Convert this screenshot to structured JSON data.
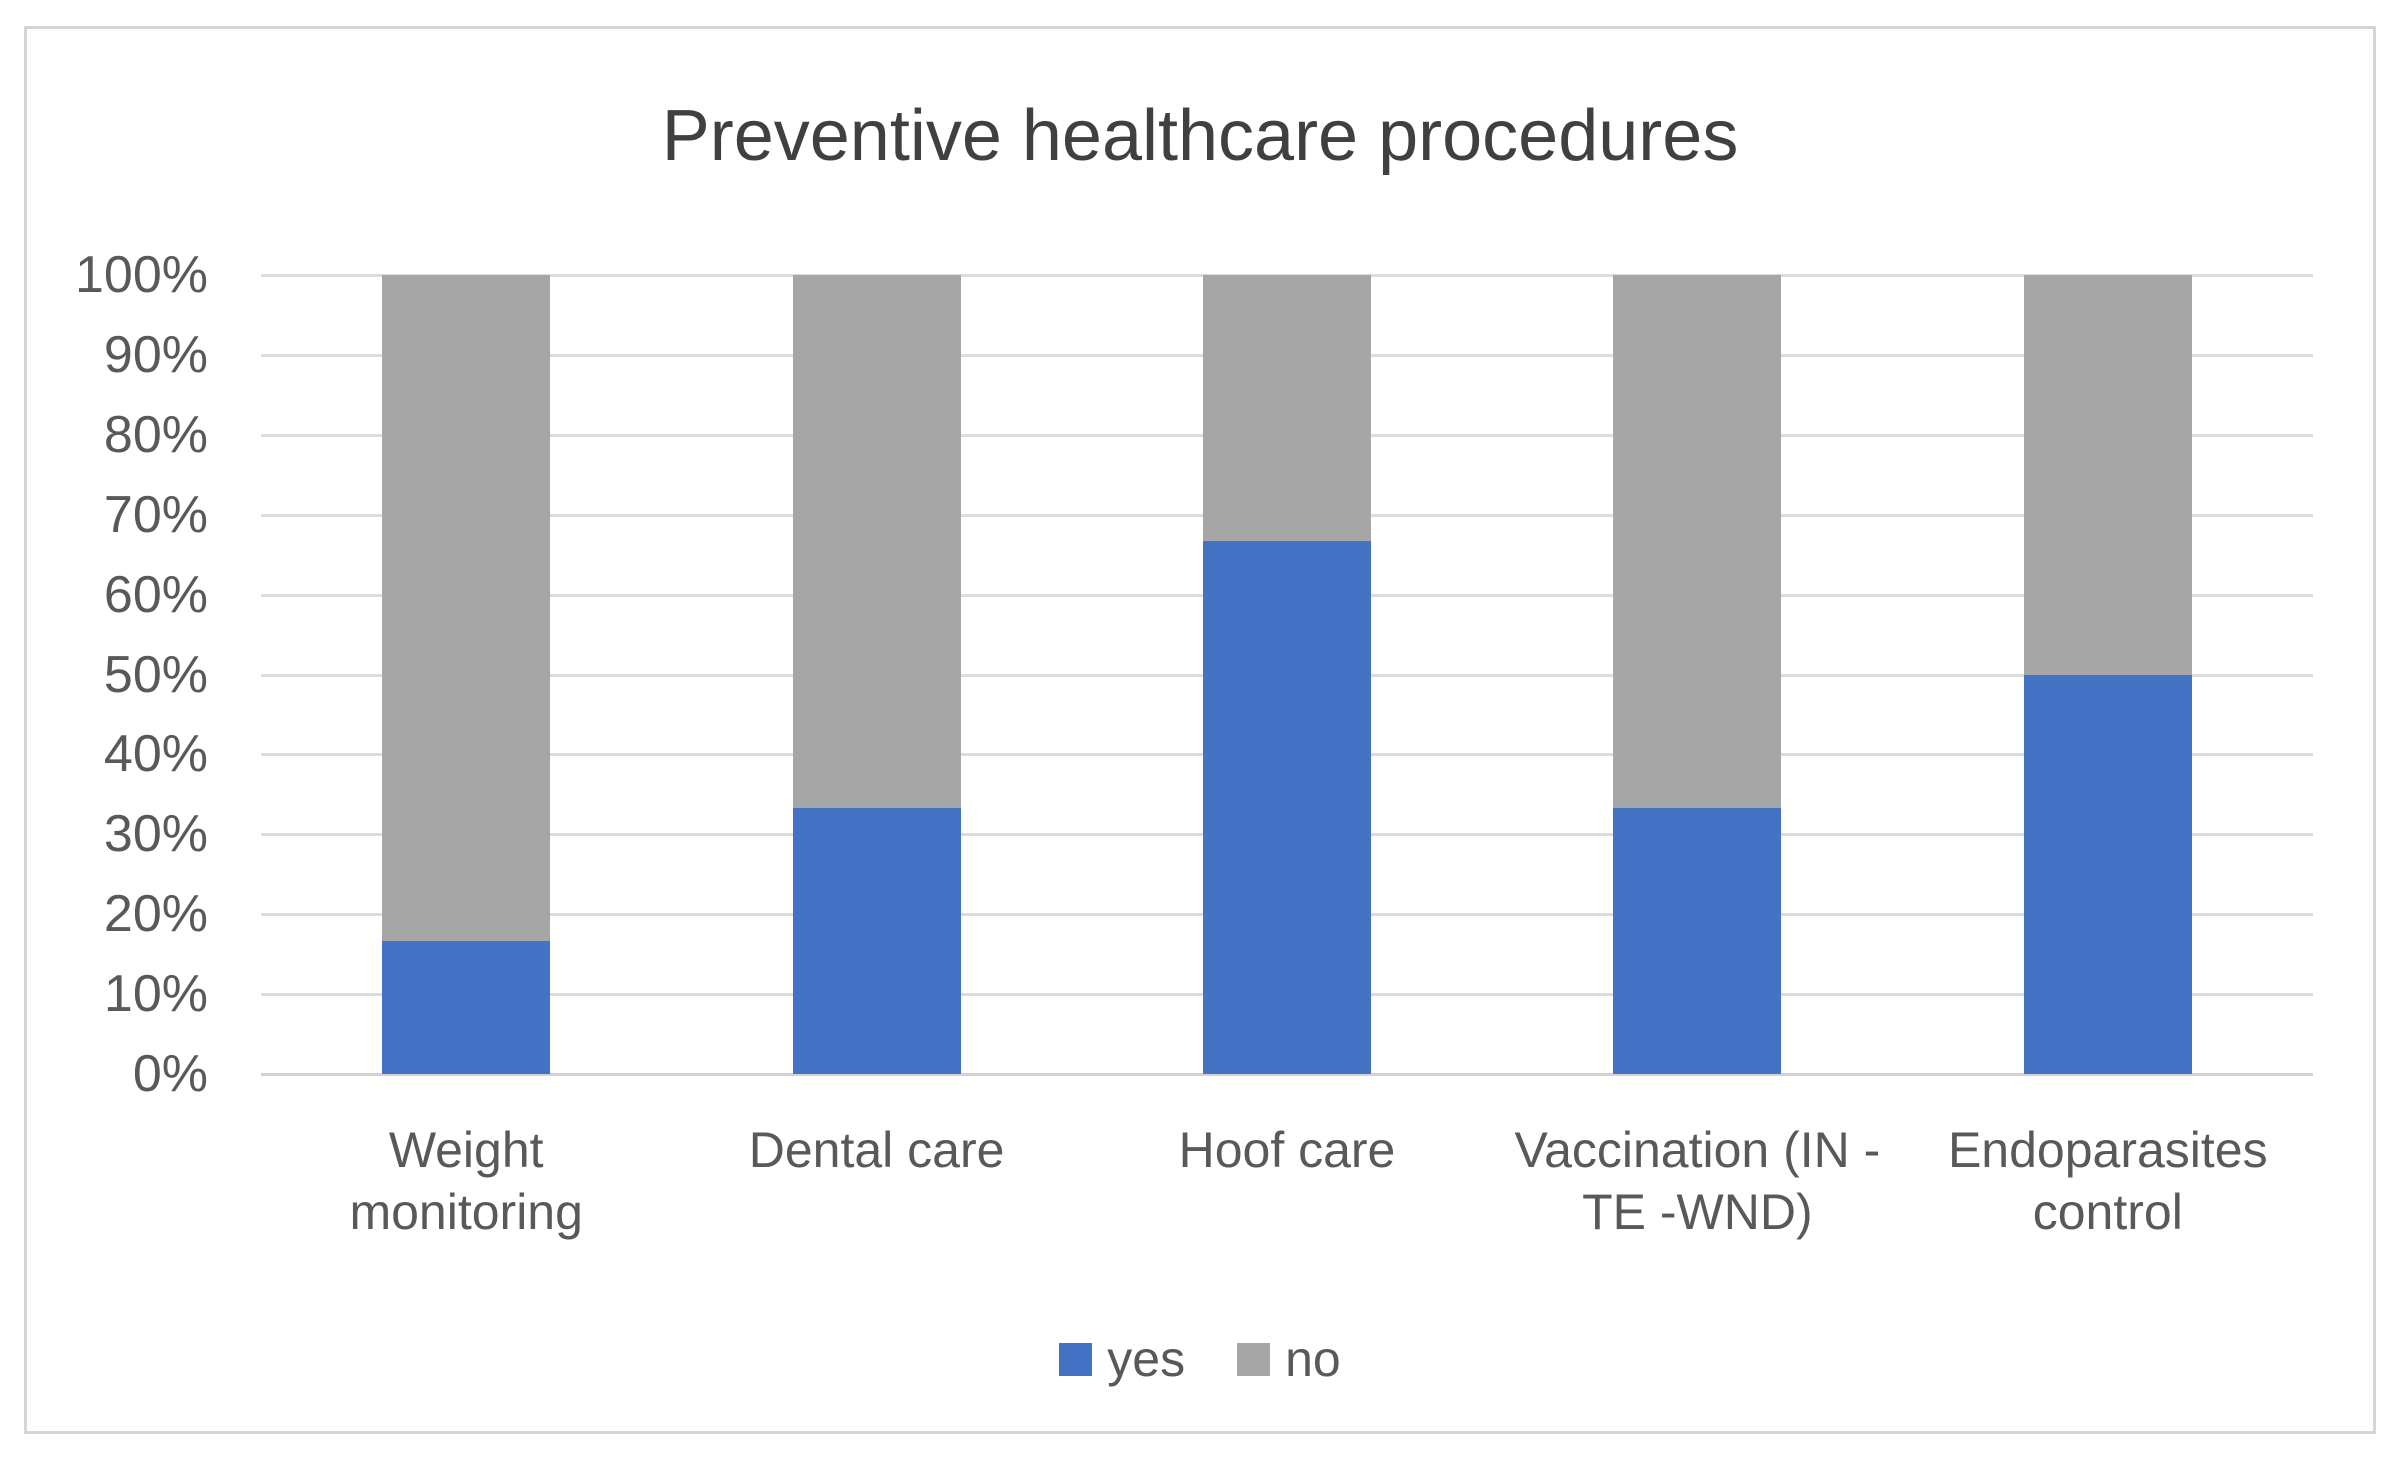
{
  "chart_data": {
    "type": "bar",
    "stacked": true,
    "percent_stacked": true,
    "title": "Preventive healthcare procedures",
    "categories": [
      "Weight monitoring",
      "Dental care",
      "Hoof care",
      "Vaccination (IN - TE -WND)",
      "Endoparasites control"
    ],
    "category_label_lines": [
      [
        "Weight",
        "monitoring"
      ],
      [
        "Dental care"
      ],
      [
        "Hoof care"
      ],
      [
        "Vaccination (IN -",
        "TE -WND)"
      ],
      [
        "Endoparasites",
        "control"
      ]
    ],
    "series": [
      {
        "name": "yes",
        "color": "#4472C4",
        "values": [
          16.7,
          33.3,
          66.7,
          33.3,
          50.0
        ]
      },
      {
        "name": "no",
        "color": "#A6A6A6",
        "values": [
          83.3,
          66.7,
          33.3,
          66.7,
          50.0
        ]
      }
    ],
    "xlabel": "",
    "ylabel": "",
    "ylim": [
      0,
      100
    ],
    "ytick_step": 10,
    "ytick_labels": [
      "0%",
      "10%",
      "20%",
      "30%",
      "40%",
      "50%",
      "60%",
      "70%",
      "80%",
      "90%",
      "100%"
    ],
    "grid": true,
    "legend_position": "bottom"
  },
  "legend": {
    "items": [
      {
        "label": "yes",
        "color": "#4472C4"
      },
      {
        "label": "no",
        "color": "#A6A6A6"
      }
    ]
  },
  "colors": {
    "bar_yes": "#4472C4",
    "bar_no": "#A6A6A6",
    "gridline": "#DCDCDC",
    "axis_line": "#D2D2D2",
    "label_text": "#595959",
    "title_text": "#404040",
    "frame_border": "#D5D5D5",
    "background": "#FFFFFF"
  }
}
